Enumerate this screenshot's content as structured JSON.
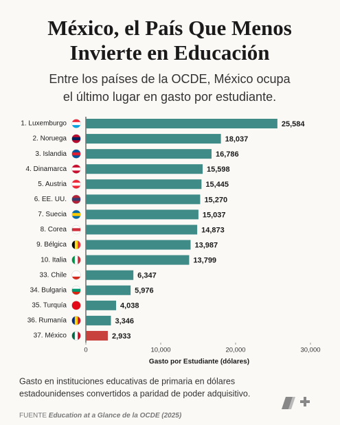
{
  "chart_data": {
    "type": "barh",
    "title": [
      "México, el País Que Menos",
      "Invierte en Educación"
    ],
    "subtitle": [
      "Entre los países de la OCDE, México ocupa",
      "el último lugar en gasto por estudiante."
    ],
    "categories": [
      "1. Luxemburgo",
      "2. Noruega",
      "3. Islandia",
      "4. Dinamarca",
      "5. Austria",
      "6. EE. UU.",
      "7. Suecia",
      "8. Corea",
      "9. Bélgica",
      "10. Italia",
      "33. Chile",
      "34. Bulgaria",
      "35. Turquía",
      "36. Rumanía",
      "37. México"
    ],
    "values": [
      25584,
      18037,
      16786,
      15598,
      15445,
      15270,
      15037,
      14873,
      13987,
      13799,
      6347,
      5976,
      4038,
      3346,
      2933
    ],
    "value_labels": [
      "25,584",
      "18,037",
      "16,786",
      "15,598",
      "15,445",
      "15,270",
      "15,037",
      "14,873",
      "13,987",
      "13,799",
      "6,347",
      "5,976",
      "4,038",
      "3,346",
      "2,933"
    ],
    "colors": [
      "#3f8b87",
      "#3f8b87",
      "#3f8b87",
      "#3f8b87",
      "#3f8b87",
      "#3f8b87",
      "#3f8b87",
      "#3f8b87",
      "#3f8b87",
      "#3f8b87",
      "#3f8b87",
      "#3f8b87",
      "#3f8b87",
      "#3f8b87",
      "#c8413d"
    ],
    "xlim": [
      0,
      30000
    ],
    "xticks": [
      0,
      {
        "value": 10000,
        "label": "10,000"
      },
      {
        "value": 20000,
        "label": "20,000"
      },
      {
        "value": 30000,
        "label": "30,000"
      }
    ],
    "xlabel": "Gasto por Estudiante (dólares)",
    "grid": false,
    "note": [
      "Gasto en instituciones educativas de primaria en dólares",
      "estadounidenses convertidos a paridad de poder adquisitivo."
    ],
    "source": {
      "label": "FUENTE",
      "text": "Education at a Glance de la OCDE (2025)"
    }
  }
}
